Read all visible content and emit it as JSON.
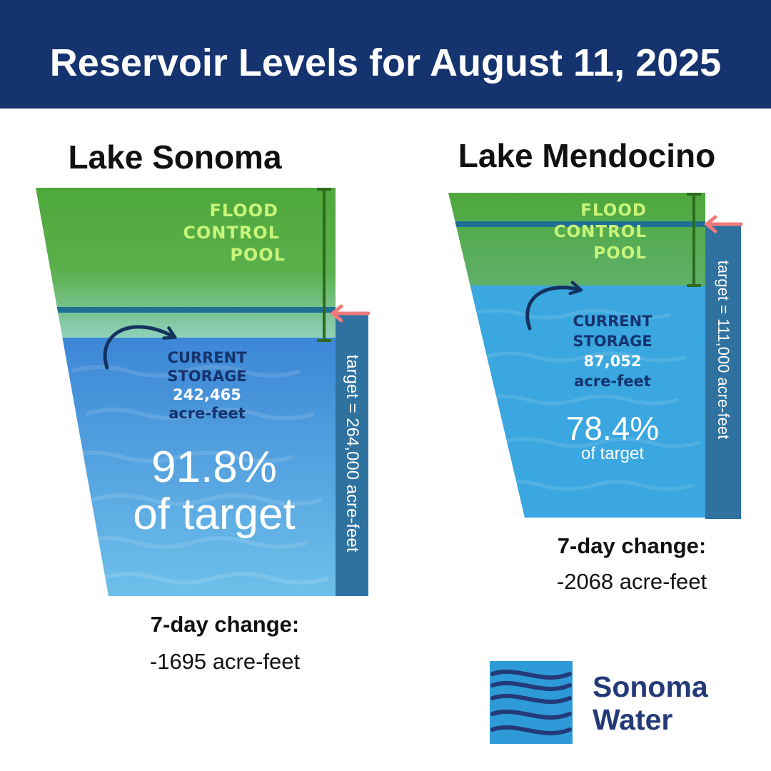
{
  "header": {
    "title": "Reservoir Levels for August 11, 2025"
  },
  "colors": {
    "header_bg": "#15336e",
    "flood_pool_green": "#4fa83b",
    "flood_label": "#c8f57a",
    "water_blue": "#3aa5df",
    "target_bar": "#2f72a0",
    "target_line_red": "#f07a7a",
    "storage_text": "#15336e"
  },
  "lakes": [
    {
      "name": "Lake Sonoma",
      "flood_label": [
        "FLOOD",
        "CONTROL",
        "POOL"
      ],
      "target_label": "target = 264,000 acre-feet",
      "storage_heading": [
        "CURRENT",
        "STORAGE"
      ],
      "storage_value": "242,465",
      "storage_unit": "acre-feet",
      "percent": "91.8%",
      "percent_suffix": "of target",
      "percent_of_target": 0.918,
      "change_label": "7-day change:",
      "change_value": "-1695 acre-feet"
    },
    {
      "name": "Lake Mendocino",
      "flood_label": [
        "FLOOD",
        "CONTROL",
        "POOL"
      ],
      "target_label": "target = 111,000 acre-feet",
      "storage_heading": [
        "CURRENT",
        "STORAGE"
      ],
      "storage_value": "87,052",
      "storage_unit": "acre-feet",
      "percent": "78.4%",
      "percent_suffix": "of target",
      "percent_of_target": 0.784,
      "change_label": "7-day change:",
      "change_value": "-2068 acre-feet"
    }
  ],
  "logo": {
    "line1": "Sonoma",
    "line2": "Water"
  }
}
